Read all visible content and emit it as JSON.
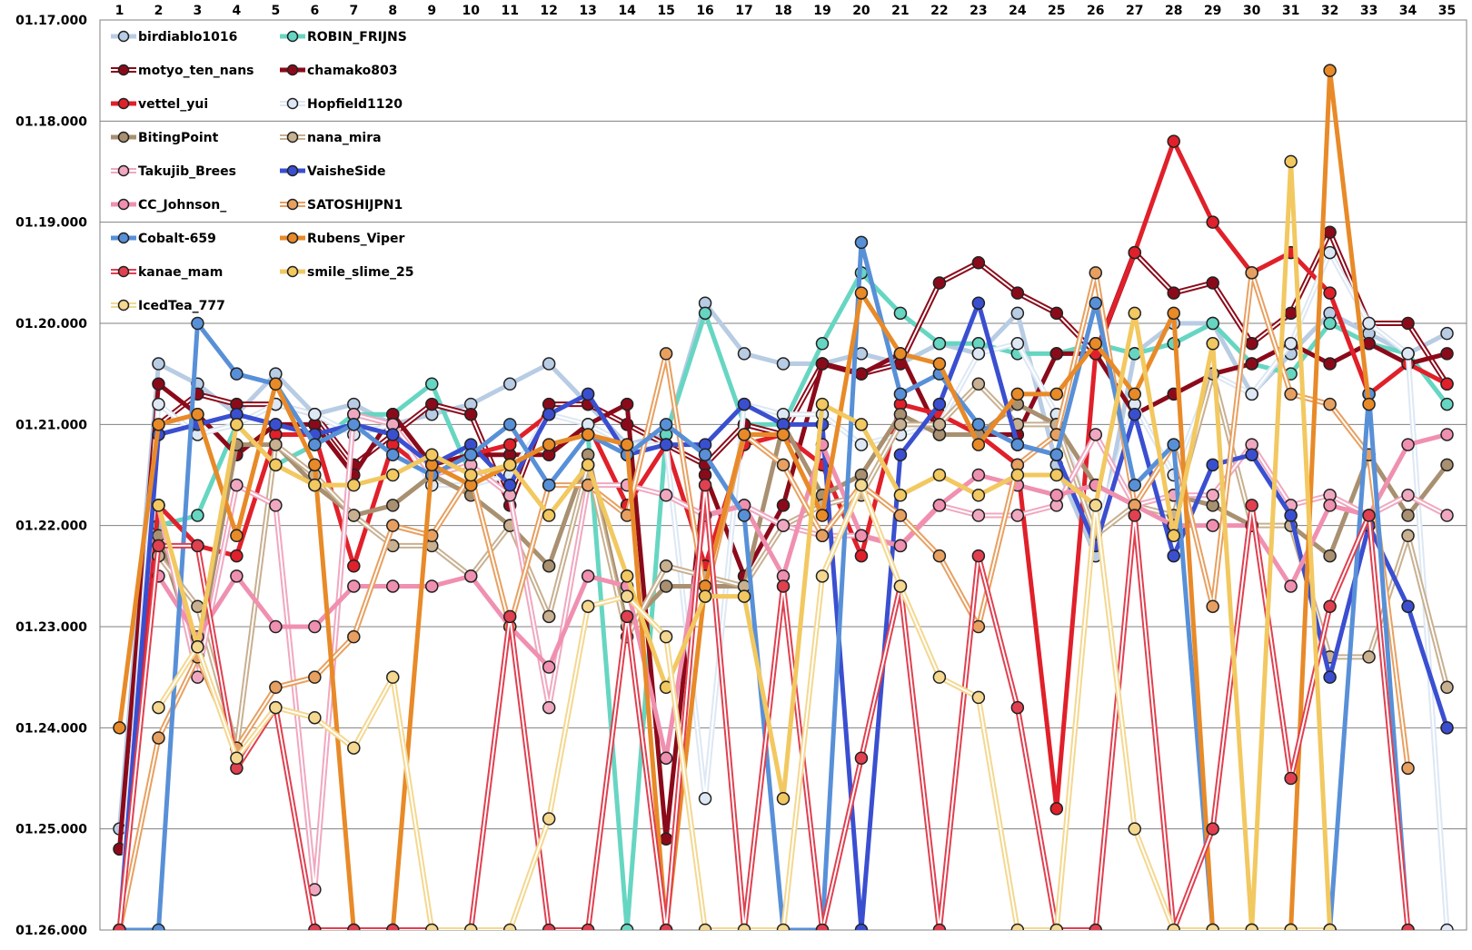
{
  "chart_data": {
    "type": "line",
    "title": "",
    "xlabel": "",
    "ylabel": "",
    "x_axis_position": "top",
    "y_inverted": true,
    "grid": "horizontal",
    "legend_position": "top-left, inside plot",
    "categories": [
      "1",
      "2",
      "3",
      "4",
      "5",
      "6",
      "7",
      "8",
      "9",
      "10",
      "11",
      "12",
      "13",
      "14",
      "15",
      "16",
      "17",
      "18",
      "19",
      "20",
      "21",
      "22",
      "23",
      "24",
      "25",
      "26",
      "27",
      "28",
      "29",
      "30",
      "31",
      "32",
      "33",
      "34",
      "35"
    ],
    "ylim": [
      77.0,
      86.0
    ],
    "y_ticks": [
      {
        "value": 77.0,
        "label": "01.17.000"
      },
      {
        "value": 78.0,
        "label": "01.18.000"
      },
      {
        "value": 79.0,
        "label": "01.19.000"
      },
      {
        "value": 80.0,
        "label": "01.20.000"
      },
      {
        "value": 81.0,
        "label": "01.21.000"
      },
      {
        "value": 82.0,
        "label": "01.22.000"
      },
      {
        "value": 83.0,
        "label": "01.23.000"
      },
      {
        "value": 84.0,
        "label": "01.24.000"
      },
      {
        "value": 85.0,
        "label": "01.25.000"
      },
      {
        "value": 86.0,
        "label": "01.26.000"
      }
    ],
    "series": [
      {
        "name": "birdiablo1016",
        "color": "#b8cce4",
        "style": "solid",
        "values": [
          85.0,
          80.4,
          80.6,
          80.9,
          80.5,
          80.9,
          80.8,
          81.0,
          80.9,
          80.8,
          80.6,
          80.4,
          80.8,
          81.2,
          81.1,
          79.8,
          80.3,
          80.4,
          80.4,
          80.3,
          80.4,
          80.2,
          80.3,
          79.9,
          81.4,
          82.3,
          80.3,
          80.0,
          80.0,
          80.7,
          80.3,
          79.9,
          80.1,
          80.3,
          80.1
        ]
      },
      {
        "name": "ROBIN_FRIJNS",
        "color": "#66d6c2",
        "style": "solid",
        "values": [
          null,
          82.0,
          81.9,
          81.0,
          81.4,
          81.2,
          80.9,
          80.9,
          80.6,
          81.5,
          81.4,
          81.2,
          81.1,
          86.0,
          81.1,
          79.9,
          81.0,
          81.0,
          80.2,
          79.5,
          79.9,
          80.2,
          80.2,
          80.3,
          80.3,
          80.2,
          80.3,
          80.2,
          80.0,
          80.4,
          80.5,
          80.0,
          80.2,
          80.3,
          80.8
        ]
      },
      {
        "name": "motyo_ten_nans",
        "color": "#8b0a1a",
        "style": "double",
        "values": [
          null,
          81.0,
          80.7,
          80.8,
          80.8,
          80.9,
          81.4,
          81.1,
          80.8,
          80.9,
          81.8,
          80.8,
          80.8,
          81.0,
          81.2,
          81.4,
          81.0,
          81.1,
          80.4,
          80.5,
          80.4,
          79.6,
          79.4,
          79.7,
          79.9,
          80.3,
          79.3,
          79.7,
          79.6,
          80.2,
          79.9,
          79.1,
          80.0,
          80.0,
          80.6
        ]
      },
      {
        "name": "chamako803",
        "color": "#8b0a1a",
        "style": "solid",
        "values": [
          85.2,
          80.6,
          80.9,
          81.3,
          81.0,
          81.0,
          81.5,
          80.9,
          81.4,
          81.3,
          81.3,
          81.3,
          81.0,
          80.8,
          85.1,
          81.5,
          82.5,
          81.8,
          80.4,
          80.5,
          80.3,
          81.1,
          81.1,
          81.1,
          80.3,
          80.3,
          80.9,
          80.7,
          80.5,
          80.4,
          80.2,
          80.4,
          80.2,
          80.4,
          80.3
        ]
      },
      {
        "name": "vettel_yui",
        "color": "#e0202a",
        "style": "solid",
        "values": [
          86.0,
          81.8,
          82.2,
          82.3,
          81.1,
          81.1,
          82.4,
          81.2,
          81.5,
          81.3,
          81.2,
          80.9,
          81.0,
          81.8,
          81.2,
          82.4,
          81.2,
          81.1,
          81.4,
          82.3,
          80.8,
          80.9,
          81.1,
          81.4,
          84.8,
          80.3,
          79.3,
          78.2,
          79.0,
          79.5,
          79.3,
          79.7,
          80.7,
          80.4,
          80.6
        ]
      },
      {
        "name": "Hopfield1120",
        "color": "#dde8f4",
        "style": "double",
        "values": [
          86.0,
          80.8,
          81.1,
          81.0,
          80.8,
          80.9,
          81.1,
          81.0,
          81.6,
          81.6,
          81.5,
          80.9,
          81.0,
          81.2,
          81.2,
          84.7,
          80.8,
          80.9,
          80.9,
          81.2,
          81.1,
          81.0,
          80.3,
          80.2,
          80.9,
          82.1,
          80.8,
          81.5,
          80.5,
          80.7,
          80.2,
          79.3,
          80.0,
          80.3,
          86.0
        ]
      },
      {
        "name": "BitingPoint",
        "color": "#a89070",
        "style": "solid",
        "values": [
          null,
          82.1,
          83.3,
          81.2,
          81.2,
          81.6,
          81.9,
          81.8,
          81.5,
          81.7,
          82.0,
          82.4,
          81.3,
          83.0,
          82.6,
          82.6,
          82.6,
          81.0,
          81.7,
          81.5,
          80.9,
          81.1,
          81.1,
          80.8,
          81.0,
          81.6,
          81.8,
          81.7,
          81.8,
          82.0,
          82.0,
          82.3,
          81.3,
          81.9,
          81.4
        ]
      },
      {
        "name": "nana_mira",
        "color": "#c8b090",
        "style": "double",
        "values": [
          null,
          82.3,
          82.8,
          84.2,
          81.2,
          81.5,
          81.9,
          82.2,
          82.2,
          82.5,
          82.0,
          82.9,
          81.4,
          83.1,
          82.4,
          82.5,
          82.6,
          82.0,
          81.8,
          81.7,
          81.0,
          81.0,
          80.6,
          81.0,
          81.0,
          82.1,
          81.8,
          81.9,
          80.5,
          82.0,
          82.0,
          83.3,
          83.3,
          82.1,
          83.6
        ]
      },
      {
        "name": "Takujib_Brees",
        "color": "#f0a8c0",
        "style": "double",
        "values": [
          null,
          81.8,
          83.5,
          81.6,
          81.8,
          85.6,
          80.9,
          81.0,
          81.5,
          81.4,
          81.7,
          83.8,
          81.6,
          81.6,
          81.7,
          81.9,
          81.8,
          82.0,
          82.1,
          82.1,
          82.2,
          81.8,
          81.9,
          81.9,
          81.8,
          81.1,
          81.8,
          81.7,
          81.7,
          81.2,
          81.8,
          81.7,
          81.9,
          81.7,
          81.9
        ]
      },
      {
        "name": "VaisheSide",
        "color": "#3a4fd0",
        "style": "solid",
        "values": [
          86.0,
          81.1,
          81.0,
          80.9,
          81.0,
          81.1,
          81.0,
          81.1,
          81.4,
          81.2,
          81.6,
          80.9,
          80.7,
          81.3,
          81.2,
          81.2,
          80.8,
          81.0,
          81.0,
          86.0,
          81.3,
          80.8,
          79.8,
          81.2,
          81.3,
          82.2,
          80.9,
          82.3,
          81.4,
          81.3,
          81.9,
          83.5,
          82.0,
          82.8,
          84.0
        ]
      },
      {
        "name": "CC_Johnson_",
        "color": "#f090b0",
        "style": "solid",
        "values": [
          null,
          82.5,
          83.1,
          82.5,
          83.0,
          83.0,
          82.6,
          82.6,
          82.6,
          82.5,
          83.0,
          83.4,
          82.5,
          82.6,
          84.3,
          81.9,
          81.8,
          82.5,
          81.2,
          82.1,
          82.2,
          81.8,
          81.5,
          81.6,
          81.7,
          81.6,
          81.8,
          82.0,
          82.0,
          82.0,
          82.6,
          81.8,
          81.9,
          81.2,
          81.1
        ]
      },
      {
        "name": "SATOSHIJPN1",
        "color": "#e8a060",
        "style": "double",
        "values": [
          86.0,
          84.1,
          83.3,
          84.2,
          83.6,
          83.5,
          83.1,
          82.0,
          82.1,
          81.5,
          83.0,
          81.6,
          81.6,
          81.9,
          80.3,
          82.7,
          81.1,
          81.4,
          82.1,
          81.6,
          81.9,
          82.3,
          83.0,
          81.4,
          81.1,
          79.5,
          81.8,
          81.2,
          82.8,
          79.5,
          80.7,
          80.8,
          81.3,
          84.4,
          null
        ]
      },
      {
        "name": "Cobalt-659",
        "color": "#5890d8",
        "style": "solid",
        "values": [
          86.0,
          86.0,
          80.0,
          80.5,
          80.6,
          81.2,
          81.0,
          81.3,
          81.5,
          81.3,
          81.0,
          81.6,
          81.1,
          81.3,
          81.0,
          81.3,
          81.9,
          86.0,
          86.0,
          79.2,
          80.7,
          80.5,
          81.0,
          81.2,
          81.3,
          79.8,
          81.6,
          81.2,
          86.0,
          86.0,
          86.0,
          86.0,
          80.7,
          86.0,
          null
        ]
      },
      {
        "name": "Rubens_Viper",
        "color": "#e88a28",
        "style": "solid",
        "values": [
          84.0,
          81.0,
          80.9,
          82.1,
          80.6,
          81.4,
          86.0,
          86.0,
          81.4,
          81.6,
          81.4,
          81.2,
          81.1,
          81.2,
          86.0,
          82.6,
          81.1,
          81.1,
          81.9,
          79.7,
          80.3,
          80.4,
          81.2,
          80.7,
          80.7,
          80.2,
          80.7,
          79.9,
          86.0,
          86.0,
          86.0,
          77.5,
          80.8,
          null,
          null
        ]
      },
      {
        "name": "kanae_mam",
        "color": "#e04050",
        "style": "double",
        "values": [
          86.0,
          82.2,
          82.2,
          84.4,
          83.8,
          86.0,
          86.0,
          86.0,
          86.0,
          86.0,
          82.9,
          86.0,
          86.0,
          82.9,
          86.0,
          81.6,
          86.0,
          82.6,
          86.0,
          84.3,
          82.6,
          86.0,
          82.3,
          83.8,
          86.0,
          86.0,
          81.9,
          86.0,
          85.0,
          81.8,
          84.5,
          82.8,
          81.9,
          86.0,
          null
        ]
      },
      {
        "name": "smile_slime_25",
        "color": "#f2c860",
        "style": "solid",
        "values": [
          null,
          81.8,
          83.2,
          81.0,
          81.4,
          81.6,
          81.6,
          81.5,
          81.3,
          81.5,
          81.4,
          81.9,
          81.4,
          82.5,
          83.6,
          82.7,
          82.7,
          84.7,
          80.8,
          81.0,
          81.7,
          81.5,
          81.7,
          81.5,
          81.5,
          81.8,
          79.9,
          82.1,
          80.2,
          86.0,
          78.4,
          86.0,
          null,
          null,
          null
        ]
      },
      {
        "name": "IcedTea_777",
        "color": "#f4d890",
        "style": "double",
        "values": [
          null,
          83.8,
          83.2,
          84.3,
          83.8,
          83.9,
          84.2,
          83.5,
          86.0,
          86.0,
          86.0,
          84.9,
          82.8,
          82.7,
          83.1,
          86.0,
          86.0,
          86.0,
          82.5,
          81.6,
          82.6,
          83.5,
          83.7,
          86.0,
          86.0,
          81.8,
          85.0,
          86.0,
          86.0,
          86.0,
          86.0,
          86.0,
          null,
          null,
          null
        ]
      }
    ]
  }
}
